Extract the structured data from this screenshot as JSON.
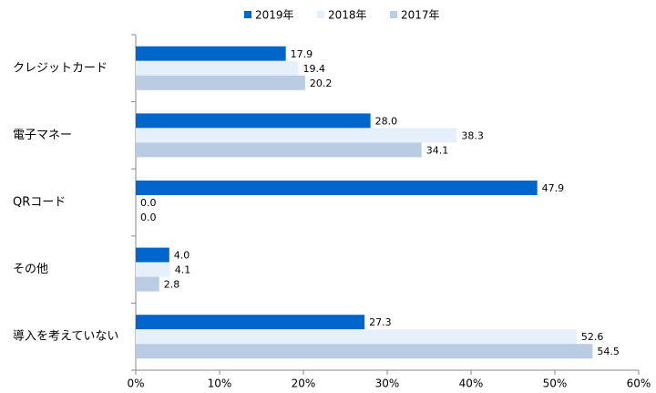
{
  "chart_data": {
    "type": "bar",
    "orientation": "horizontal",
    "categories": [
      "クレジットカード",
      "電子マネー",
      "QRコード",
      "その他",
      "導入を考えていない"
    ],
    "series": [
      {
        "name": "2019年",
        "color": "#0066cc",
        "values": [
          17.9,
          28.0,
          47.9,
          4.0,
          27.3
        ],
        "value_labels": [
          "17.9",
          "28.0",
          "47.9",
          "4.0",
          "27.3"
        ]
      },
      {
        "name": "2018年",
        "color": "#e6f0fb",
        "values": [
          19.4,
          38.3,
          0.0,
          4.1,
          52.6
        ],
        "value_labels": [
          "19.4",
          "38.3",
          "0.0",
          "4.1",
          "52.6"
        ]
      },
      {
        "name": "2017年",
        "color": "#b9cce4",
        "values": [
          20.2,
          34.1,
          0.0,
          2.8,
          54.5
        ],
        "value_labels": [
          "20.2",
          "34.1",
          "0.0",
          "2.8",
          "54.5"
        ]
      }
    ],
    "xlim": [
      0,
      60
    ],
    "xticks": [
      {
        "value": 0,
        "label": "0%"
      },
      {
        "value": 10,
        "label": "10%"
      },
      {
        "value": 20,
        "label": "20%"
      },
      {
        "value": 30,
        "label": "30%"
      },
      {
        "value": 40,
        "label": "40%"
      },
      {
        "value": 50,
        "label": "50%"
      },
      {
        "value": 60,
        "label": "60%"
      }
    ],
    "legend": "top"
  }
}
